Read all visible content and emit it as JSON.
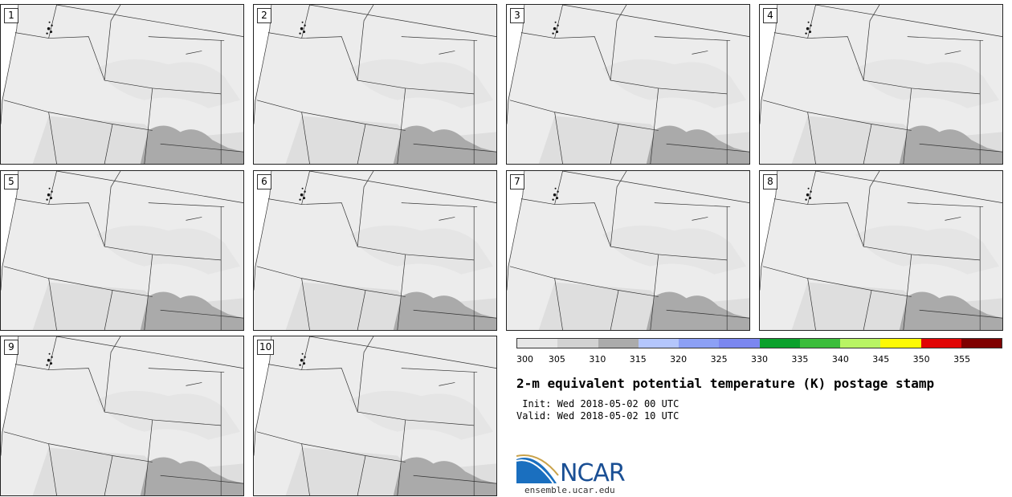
{
  "panels": [
    {
      "label": "1"
    },
    {
      "label": "2"
    },
    {
      "label": "3"
    },
    {
      "label": "4"
    },
    {
      "label": "5"
    },
    {
      "label": "6"
    },
    {
      "label": "7"
    },
    {
      "label": "8"
    },
    {
      "label": "9"
    },
    {
      "label": "10"
    }
  ],
  "colorbar": {
    "colors": [
      "#e6e6e6",
      "#d2d2d2",
      "#ababab",
      "#b4c6fc",
      "#8ca0f5",
      "#7b87f0",
      "#0ba12c",
      "#3bbd3b",
      "#b8f464",
      "#fdf904",
      "#e10505",
      "#7f0000"
    ],
    "ticks": [
      "300",
      "305",
      "310",
      "315",
      "320",
      "325",
      "330",
      "335",
      "340",
      "345",
      "350",
      "355"
    ]
  },
  "title": "2-m equivalent potential temperature (K) postage stamp",
  "init": " Init: Wed 2018-05-02 00 UTC",
  "valid": "Valid: Wed 2018-05-02 10 UTC",
  "logo": {
    "text": "NCAR",
    "url": "ensemble.ucar.edu"
  }
}
